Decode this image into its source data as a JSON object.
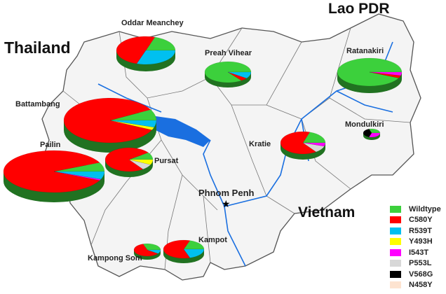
{
  "countries": {
    "thailand": "Thailand",
    "laos": "Lao PDR",
    "vietnam": "Vietnam"
  },
  "capital": "Phnom Penh",
  "legend": [
    {
      "key": "wildtype",
      "label": "Wildtype",
      "color": "#3cd03c"
    },
    {
      "key": "c580y",
      "label": "C580Y",
      "color": "#ff0000"
    },
    {
      "key": "r539t",
      "label": "R539T",
      "color": "#00c0f0"
    },
    {
      "key": "y493h",
      "label": "Y493H",
      "color": "#ffff00"
    },
    {
      "key": "i543t",
      "label": "I543T",
      "color": "#ff00ff"
    },
    {
      "key": "p553l",
      "label": "P553L",
      "color": "#d8d8d8"
    },
    {
      "key": "v568g",
      "label": "V568G",
      "color": "#000000"
    },
    {
      "key": "n458y",
      "label": "N458Y",
      "color": "#fde3d0"
    }
  ],
  "provinces": [
    {
      "name": "Oddar Meanchey",
      "shares": {
        "wildtype": 0.2,
        "c580y": 0.5,
        "r539t": 0.3
      }
    },
    {
      "name": "Preah Vihear",
      "shares": {
        "wildtype": 0.85,
        "c580y": 0.05,
        "r539t": 0.1
      }
    },
    {
      "name": "Ratanakiri",
      "shares": {
        "wildtype": 0.93,
        "c580y": 0.03,
        "i543t": 0.04
      }
    },
    {
      "name": "Battambang",
      "shares": {
        "wildtype": 0.08,
        "c580y": 0.85,
        "r539t": 0.05,
        "y493h": 0.02
      }
    },
    {
      "name": "Pailin",
      "shares": {
        "wildtype": 0.07,
        "c580y": 0.86,
        "r539t": 0.06,
        "i543t": 0.01
      }
    },
    {
      "name": "Pursat",
      "shares": {
        "wildtype": 0.1,
        "c580y": 0.75,
        "y493h": 0.07,
        "p553l": 0.08
      }
    },
    {
      "name": "Kratie",
      "shares": {
        "wildtype": 0.2,
        "c580y": 0.65,
        "i543t": 0.05,
        "p553l": 0.1
      }
    },
    {
      "name": "Mondulkiri",
      "shares": {
        "wildtype": 0.3,
        "i543t": 0.3,
        "v568g": 0.4
      }
    },
    {
      "name": "Kampot",
      "shares": {
        "wildtype": 0.2,
        "c580y": 0.6,
        "r539t": 0.2
      }
    },
    {
      "name": "Kampong Som",
      "shares": {
        "wildtype": 0.3,
        "c580y": 0.6,
        "r539t": 0.1
      }
    }
  ]
}
